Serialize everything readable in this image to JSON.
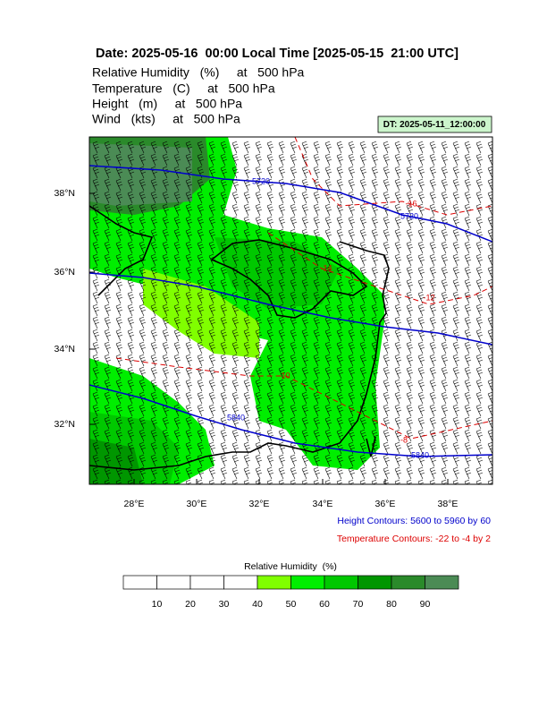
{
  "header": {
    "title": "Date: 2025-05-16  00:00 Local Time [2025-05-15  21:00 UTC]",
    "fields": [
      "Relative Humidity   (%)     at   500 hPa",
      "Temperature   (C)     at   500 hPa",
      "Height   (m)     at   500 hPa",
      "Wind   (kts)     at   500 hPa"
    ]
  },
  "dt_label": "DT: 2025-05-11_12:00:00",
  "map": {
    "lat_labels": [
      "38°N",
      "36°N",
      "34°N",
      "32°N"
    ],
    "lon_labels": [
      "28°E",
      "30°E",
      "32°E",
      "34°E",
      "36°E",
      "38°E"
    ],
    "height_contour_labels": [
      "5720",
      "5720",
      "5840",
      "5840"
    ],
    "temperature_contour_labels": [
      "-16",
      "-14",
      "-12",
      "-10",
      "-8"
    ]
  },
  "legend": {
    "height": "Height Contours: 5600 to 5960 by 60",
    "temperature": "Temperature Contours: -22 to -4 by 2"
  },
  "colorbar": {
    "title": "Relative Humidity  (%)",
    "labels": [
      10,
      20,
      30,
      40,
      50,
      60,
      70,
      80,
      90
    ],
    "colors": [
      "#ffffff",
      "#ffffff",
      "#ffffff",
      "#ffffff",
      "#80ff00",
      "#00ee00",
      "#00c800",
      "#009600",
      "#2a8a2a",
      "#4b8b55"
    ]
  }
}
